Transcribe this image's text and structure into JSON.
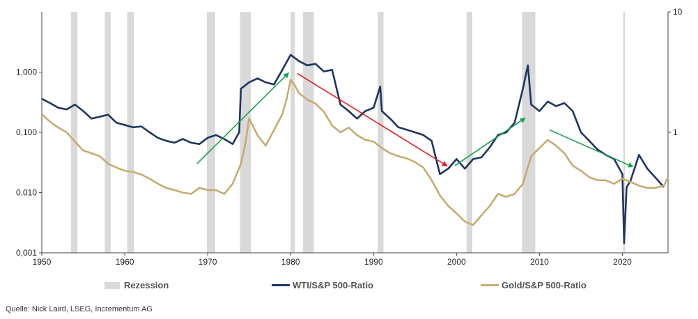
{
  "chart_data": {
    "type": "line",
    "x_range": [
      1950,
      2025.5
    ],
    "x_ticks": [
      "1950",
      "1960",
      "1970",
      "1980",
      "1990",
      "2000",
      "2010",
      "2020"
    ],
    "x_tick_values": [
      1950,
      1960,
      1970,
      1980,
      1990,
      2000,
      2010,
      2020
    ],
    "y_left": {
      "scale": "log",
      "range": [
        0.001,
        10
      ],
      "tick_values": [
        0.001,
        0.01,
        0.1,
        1
      ],
      "tick_labels": [
        "0,001",
        "0,010",
        "0,100",
        "1,000"
      ]
    },
    "y_right": {
      "scale": "log",
      "range": [
        0.1,
        10
      ],
      "tick_values": [
        1,
        10
      ],
      "tick_labels": [
        "1",
        "10"
      ]
    },
    "recessions": [
      [
        1953.5,
        1954.3
      ],
      [
        1957.6,
        1958.3
      ],
      [
        1960.3,
        1961.1
      ],
      [
        1969.9,
        1970.9
      ],
      [
        1973.9,
        1975.2
      ],
      [
        1980.0,
        1980.5
      ],
      [
        1981.5,
        1982.8
      ],
      [
        1990.5,
        1991.2
      ],
      [
        2001.2,
        2001.9
      ],
      [
        2007.9,
        2009.5
      ],
      [
        2020.1,
        2020.3
      ]
    ],
    "series": [
      {
        "name": "WTI/S&P 500-Ratio",
        "axis": "right",
        "color": "#1f3461",
        "points": [
          [
            1950,
            1.9
          ],
          [
            1951,
            1.75
          ],
          [
            1952,
            1.6
          ],
          [
            1953,
            1.55
          ],
          [
            1954,
            1.7
          ],
          [
            1955,
            1.5
          ],
          [
            1956,
            1.3
          ],
          [
            1957,
            1.35
          ],
          [
            1958,
            1.4
          ],
          [
            1959,
            1.2
          ],
          [
            1960,
            1.15
          ],
          [
            1961,
            1.1
          ],
          [
            1962,
            1.12
          ],
          [
            1963,
            1.0
          ],
          [
            1964,
            0.9
          ],
          [
            1965,
            0.85
          ],
          [
            1966,
            0.82
          ],
          [
            1967,
            0.88
          ],
          [
            1968,
            0.82
          ],
          [
            1969,
            0.8
          ],
          [
            1970,
            0.9
          ],
          [
            1971,
            0.95
          ],
          [
            1972,
            0.88
          ],
          [
            1973,
            0.8
          ],
          [
            1973.8,
            1.0
          ],
          [
            1974,
            2.3
          ],
          [
            1975,
            2.6
          ],
          [
            1976,
            2.8
          ],
          [
            1977,
            2.6
          ],
          [
            1978,
            2.5
          ],
          [
            1979,
            3.3
          ],
          [
            1980,
            4.4
          ],
          [
            1981,
            3.9
          ],
          [
            1982,
            3.6
          ],
          [
            1983,
            3.7
          ],
          [
            1984,
            3.2
          ],
          [
            1985,
            3.3
          ],
          [
            1986,
            1.7
          ],
          [
            1987,
            1.5
          ],
          [
            1988,
            1.3
          ],
          [
            1989,
            1.5
          ],
          [
            1990,
            1.6
          ],
          [
            1990.8,
            2.4
          ],
          [
            1991,
            1.5
          ],
          [
            1992,
            1.3
          ],
          [
            1993,
            1.1
          ],
          [
            1994,
            1.05
          ],
          [
            1995,
            1.0
          ],
          [
            1996,
            0.95
          ],
          [
            1997,
            0.85
          ],
          [
            1998,
            0.45
          ],
          [
            1999,
            0.5
          ],
          [
            2000,
            0.6
          ],
          [
            2001,
            0.5
          ],
          [
            2002,
            0.6
          ],
          [
            2003,
            0.62
          ],
          [
            2004,
            0.75
          ],
          [
            2005,
            0.95
          ],
          [
            2006,
            1.0
          ],
          [
            2007,
            1.2
          ],
          [
            2008,
            2.3
          ],
          [
            2008.6,
            3.6
          ],
          [
            2009,
            1.7
          ],
          [
            2010,
            1.5
          ],
          [
            2011,
            1.8
          ],
          [
            2012,
            1.65
          ],
          [
            2013,
            1.75
          ],
          [
            2014,
            1.5
          ],
          [
            2015,
            1.0
          ],
          [
            2016,
            0.85
          ],
          [
            2017,
            0.72
          ],
          [
            2018,
            0.65
          ],
          [
            2019,
            0.6
          ],
          [
            2020,
            0.45
          ],
          [
            2020.2,
            0.12
          ],
          [
            2020.5,
            0.35
          ],
          [
            2021,
            0.4
          ],
          [
            2022,
            0.65
          ],
          [
            2023,
            0.5
          ],
          [
            2024,
            0.42
          ],
          [
            2025,
            0.35
          ]
        ]
      },
      {
        "name": "Gold/S&P 500-Ratio",
        "axis": "left",
        "color": "#c6ab70",
        "points": [
          [
            1950,
            0.2
          ],
          [
            1951,
            0.15
          ],
          [
            1952,
            0.12
          ],
          [
            1953,
            0.1
          ],
          [
            1954,
            0.07
          ],
          [
            1955,
            0.05
          ],
          [
            1956,
            0.045
          ],
          [
            1957,
            0.04
          ],
          [
            1958,
            0.03
          ],
          [
            1959,
            0.026
          ],
          [
            1960,
            0.023
          ],
          [
            1961,
            0.022
          ],
          [
            1962,
            0.02
          ],
          [
            1963,
            0.017
          ],
          [
            1964,
            0.014
          ],
          [
            1965,
            0.012
          ],
          [
            1966,
            0.011
          ],
          [
            1967,
            0.01
          ],
          [
            1968,
            0.0095
          ],
          [
            1969,
            0.012
          ],
          [
            1970,
            0.011
          ],
          [
            1971,
            0.011
          ],
          [
            1972,
            0.0095
          ],
          [
            1973,
            0.014
          ],
          [
            1974,
            0.03
          ],
          [
            1974.5,
            0.06
          ],
          [
            1975,
            0.17
          ],
          [
            1976,
            0.09
          ],
          [
            1977,
            0.06
          ],
          [
            1978,
            0.11
          ],
          [
            1979,
            0.2
          ],
          [
            1979.5,
            0.35
          ],
          [
            1980,
            0.75
          ],
          [
            1980.5,
            0.6
          ],
          [
            1981,
            0.45
          ],
          [
            1982,
            0.35
          ],
          [
            1983,
            0.3
          ],
          [
            1984,
            0.22
          ],
          [
            1985,
            0.13
          ],
          [
            1986,
            0.1
          ],
          [
            1987,
            0.12
          ],
          [
            1988,
            0.09
          ],
          [
            1989,
            0.075
          ],
          [
            1990,
            0.07
          ],
          [
            1991,
            0.055
          ],
          [
            1992,
            0.045
          ],
          [
            1993,
            0.04
          ],
          [
            1994,
            0.037
          ],
          [
            1995,
            0.032
          ],
          [
            1996,
            0.026
          ],
          [
            1997,
            0.016
          ],
          [
            1998,
            0.009
          ],
          [
            1999,
            0.006
          ],
          [
            2000,
            0.0045
          ],
          [
            2001,
            0.0033
          ],
          [
            2002,
            0.0029
          ],
          [
            2003,
            0.0042
          ],
          [
            2004,
            0.006
          ],
          [
            2005,
            0.0095
          ],
          [
            2006,
            0.0085
          ],
          [
            2007,
            0.0095
          ],
          [
            2008,
            0.014
          ],
          [
            2009,
            0.04
          ],
          [
            2010,
            0.055
          ],
          [
            2011,
            0.075
          ],
          [
            2012,
            0.06
          ],
          [
            2013,
            0.045
          ],
          [
            2014,
            0.028
          ],
          [
            2015,
            0.023
          ],
          [
            2016,
            0.018
          ],
          [
            2017,
            0.016
          ],
          [
            2018,
            0.016
          ],
          [
            2019,
            0.014
          ],
          [
            2020,
            0.017
          ],
          [
            2021,
            0.015
          ],
          [
            2022,
            0.013
          ],
          [
            2023,
            0.012
          ],
          [
            2024,
            0.012
          ],
          [
            2025,
            0.013
          ],
          [
            2025.5,
            0.018
          ]
        ]
      }
    ],
    "arrows": [
      {
        "color": "#1aa34a",
        "from": [
          1968.7,
          0.03
        ],
        "to": [
          1979.7,
          0.95
        ]
      },
      {
        "color": "#e41e1e",
        "from": [
          1980.8,
          0.95
        ],
        "to": [
          1998.8,
          0.028
        ]
      },
      {
        "color": "#1aa34a",
        "from": [
          1999.8,
          0.028
        ],
        "to": [
          2008.2,
          0.17
        ]
      },
      {
        "color": "#1aa34a",
        "from": [
          2011.2,
          0.11
        ],
        "to": [
          2021.2,
          0.027
        ]
      }
    ]
  },
  "legend": {
    "recession": "Rezession",
    "wti": "WTI/S&P 500-Ratio",
    "gold": "Gold/S&P 500-Ratio"
  },
  "source": "Quelle: Nick Laird, LSEG, Incrementum AG"
}
